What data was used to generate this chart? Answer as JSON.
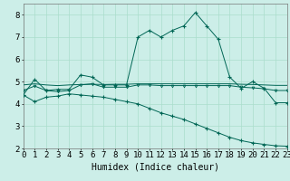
{
  "x": [
    0,
    1,
    2,
    3,
    4,
    5,
    6,
    7,
    8,
    9,
    10,
    11,
    12,
    13,
    14,
    15,
    16,
    17,
    18,
    19,
    20,
    21,
    22,
    23
  ],
  "line1": [
    4.4,
    5.1,
    4.6,
    4.65,
    4.65,
    5.3,
    5.2,
    4.85,
    4.85,
    4.85,
    7.0,
    7.3,
    7.0,
    7.3,
    7.5,
    8.1,
    7.5,
    6.9,
    5.2,
    4.7,
    5.0,
    4.7,
    4.05,
    4.05
  ],
  "line2": [
    4.85,
    4.9,
    4.85,
    4.82,
    4.85,
    4.87,
    4.88,
    4.87,
    4.88,
    4.88,
    4.9,
    4.9,
    4.9,
    4.9,
    4.9,
    4.9,
    4.9,
    4.9,
    4.9,
    4.88,
    4.87,
    4.85,
    4.83,
    4.83
  ],
  "line3": [
    4.6,
    4.8,
    4.6,
    4.55,
    4.6,
    4.85,
    4.9,
    4.75,
    4.75,
    4.75,
    4.85,
    4.85,
    4.82,
    4.82,
    4.82,
    4.82,
    4.82,
    4.82,
    4.82,
    4.75,
    4.72,
    4.68,
    4.6,
    4.6
  ],
  "line4": [
    4.4,
    4.1,
    4.3,
    4.35,
    4.45,
    4.4,
    4.35,
    4.3,
    4.2,
    4.1,
    4.0,
    3.8,
    3.6,
    3.45,
    3.3,
    3.1,
    2.9,
    2.7,
    2.5,
    2.35,
    2.25,
    2.18,
    2.12,
    2.1
  ],
  "bg_color": "#cceee8",
  "line_color": "#006655",
  "grid_color": "#aaddcc",
  "xlabel": "Humidex (Indice chaleur)",
  "xlim": [
    0,
    23
  ],
  "ylim": [
    2,
    8.5
  ],
  "yticks": [
    2,
    3,
    4,
    5,
    6,
    7,
    8
  ],
  "xticks": [
    0,
    1,
    2,
    3,
    4,
    5,
    6,
    7,
    8,
    9,
    10,
    11,
    12,
    13,
    14,
    15,
    16,
    17,
    18,
    19,
    20,
    21,
    22,
    23
  ],
  "xlabel_fontsize": 7,
  "tick_fontsize": 6.5
}
